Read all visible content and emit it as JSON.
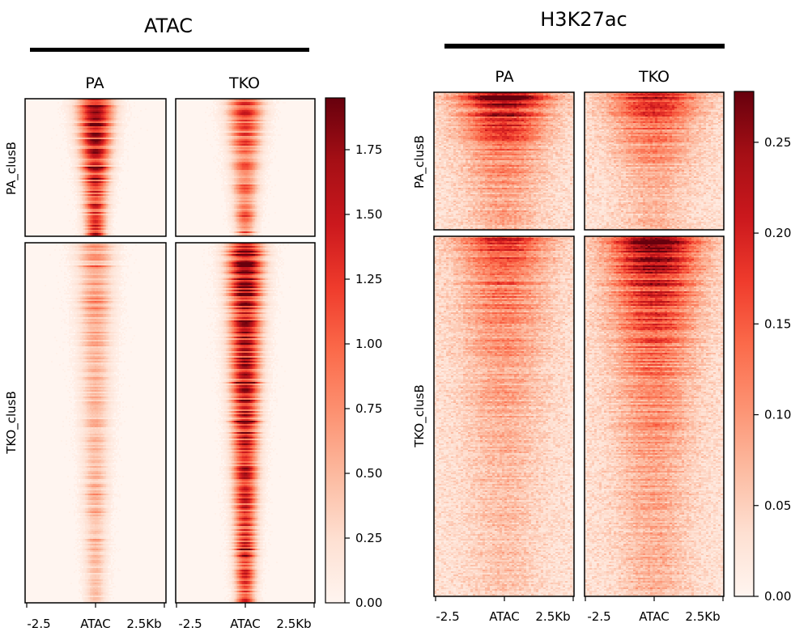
{
  "chart_data": [
    {
      "type": "heatmap",
      "title": "ATAC",
      "columns": [
        "PA",
        "TKO"
      ],
      "row_groups": [
        "PA_clusB",
        "TKO_clusB"
      ],
      "x_ticks": [
        "-2.5",
        "ATAC",
        "2.5Kb"
      ],
      "colorbar": {
        "min": 0.0,
        "max": 1.95,
        "ticks": [
          0.0,
          0.25,
          0.5,
          0.75,
          1.0,
          1.25,
          1.5,
          1.75
        ]
      },
      "colormap": "Reds",
      "signal": {
        "PA": {
          "PA_clusB": {
            "peak": 1.75,
            "width": "narrow"
          },
          "TKO_clusB": {
            "peak": 0.6,
            "width": "narrow"
          }
        },
        "TKO": {
          "PA_clusB": {
            "peak": 1.2,
            "width": "narrow"
          },
          "TKO_clusB": {
            "peak": 1.8,
            "width": "narrow"
          }
        }
      }
    },
    {
      "type": "heatmap",
      "title": "H3K27ac",
      "columns": [
        "PA",
        "TKO"
      ],
      "row_groups": [
        "PA_clusB",
        "TKO_clusB"
      ],
      "x_ticks": [
        "-2.5",
        "ATAC",
        "2.5Kb"
      ],
      "colorbar": {
        "min": 0.0,
        "max": 0.278,
        "ticks": [
          0.0,
          0.05,
          0.1,
          0.15,
          0.2,
          0.25
        ]
      },
      "colormap": "Reds",
      "signal": {
        "PA": {
          "PA_clusB": {
            "peak": 0.25,
            "width": "broad"
          },
          "TKO_clusB": {
            "peak": 0.14,
            "width": "broad"
          }
        },
        "TKO": {
          "PA_clusB": {
            "peak": 0.18,
            "width": "broad"
          },
          "TKO_clusB": {
            "peak": 0.22,
            "width": "broad"
          }
        }
      }
    }
  ]
}
